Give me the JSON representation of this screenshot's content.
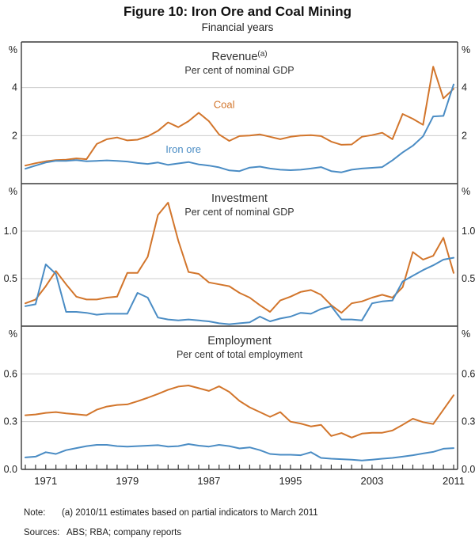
{
  "header": {
    "title": "Figure 10: Iron Ore and Coal Mining",
    "subtitle": "Financial years"
  },
  "footer": {
    "note_label": "Note:",
    "note_text": "(a) 2010/11 estimates based on partial indicators to March 2011",
    "sources_label": "Sources:",
    "sources_text": "ABS; RBA; company reports"
  },
  "colors": {
    "coal": "#D2752B",
    "iron_ore": "#4A8CC4",
    "frame": "#3a3a3a",
    "grid": "#cccccc",
    "text": "#1c1c1c",
    "panel_text": "#333333"
  },
  "x_axis": {
    "start_year": 1969,
    "end_year": 2011,
    "step": 1,
    "tick_labels": [
      "1971",
      "1979",
      "1987",
      "1995",
      "2003",
      "2011"
    ],
    "tick_label_years": [
      1971,
      1979,
      1987,
      1995,
      2003,
      2011
    ]
  },
  "chart_data": [
    {
      "type": "line",
      "title": "Revenue",
      "title_superscript": "(a)",
      "subtitle": "Per cent of nominal GDP",
      "unit": "%",
      "ylim": [
        0,
        5.9
      ],
      "yticks": [
        {
          "value": 2,
          "label": "2",
          "grid": true
        },
        {
          "value": 4,
          "label": "4",
          "grid": true
        }
      ],
      "annotations": [
        {
          "text": "Coal",
          "series": "coal",
          "x_year": 1988.5,
          "y_value": 3.15
        },
        {
          "text": "Iron ore",
          "series": "iron_ore",
          "x_year": 1984.5,
          "y_value": 1.28
        }
      ],
      "series": [
        {
          "name": "Coal",
          "color_key": "coal",
          "values": [
            0.75,
            0.85,
            0.93,
            0.98,
            1.0,
            1.05,
            1.02,
            1.65,
            1.85,
            1.92,
            1.8,
            1.83,
            1.97,
            2.2,
            2.55,
            2.35,
            2.6,
            2.95,
            2.6,
            2.05,
            1.78,
            1.98,
            2.0,
            2.05,
            1.95,
            1.85,
            1.95,
            2.0,
            2.02,
            1.98,
            1.75,
            1.62,
            1.63,
            1.95,
            2.02,
            2.12,
            1.85,
            2.9,
            2.7,
            2.45,
            4.87,
            3.55,
            3.95
          ]
        },
        {
          "name": "Iron ore",
          "color_key": "iron_ore",
          "values": [
            0.62,
            0.75,
            0.88,
            0.95,
            0.95,
            0.98,
            0.93,
            0.95,
            0.97,
            0.95,
            0.92,
            0.86,
            0.82,
            0.88,
            0.78,
            0.84,
            0.9,
            0.8,
            0.75,
            0.68,
            0.55,
            0.52,
            0.67,
            0.71,
            0.63,
            0.58,
            0.56,
            0.58,
            0.63,
            0.69,
            0.52,
            0.47,
            0.58,
            0.63,
            0.66,
            0.69,
            0.97,
            1.3,
            1.58,
            1.97,
            2.8,
            2.82,
            4.13
          ]
        }
      ]
    },
    {
      "type": "line",
      "title": "Investment",
      "title_superscript": "",
      "subtitle": "Per cent of nominal GDP",
      "unit": "%",
      "ylim": [
        0,
        1.5
      ],
      "yticks": [
        {
          "value": 0.5,
          "label": "0.5",
          "grid": true
        },
        {
          "value": 1.0,
          "label": "1.0",
          "grid": true
        }
      ],
      "annotations": [],
      "series": [
        {
          "name": "Coal",
          "color_key": "coal",
          "values": [
            0.24,
            0.28,
            0.42,
            0.58,
            0.44,
            0.31,
            0.28,
            0.28,
            0.3,
            0.31,
            0.56,
            0.56,
            0.73,
            1.17,
            1.3,
            0.9,
            0.57,
            0.55,
            0.46,
            0.44,
            0.42,
            0.35,
            0.3,
            0.22,
            0.15,
            0.27,
            0.31,
            0.36,
            0.38,
            0.33,
            0.22,
            0.14,
            0.24,
            0.26,
            0.3,
            0.33,
            0.3,
            0.41,
            0.78,
            0.7,
            0.74,
            0.93,
            0.56
          ]
        },
        {
          "name": "Iron ore",
          "color_key": "iron_ore",
          "values": [
            0.21,
            0.23,
            0.65,
            0.55,
            0.15,
            0.15,
            0.14,
            0.12,
            0.13,
            0.13,
            0.13,
            0.35,
            0.3,
            0.09,
            0.07,
            0.06,
            0.07,
            0.06,
            0.05,
            0.03,
            0.02,
            0.03,
            0.04,
            0.1,
            0.05,
            0.08,
            0.1,
            0.14,
            0.13,
            0.18,
            0.21,
            0.07,
            0.07,
            0.06,
            0.24,
            0.26,
            0.27,
            0.47,
            0.53,
            0.59,
            0.64,
            0.7,
            0.72
          ]
        }
      ]
    },
    {
      "type": "line",
      "title": "Employment",
      "title_superscript": "",
      "subtitle": "Per cent of total employment",
      "unit": "%",
      "ylim": [
        0,
        0.9
      ],
      "yticks": [
        {
          "value": 0,
          "label": "0.0",
          "grid": false
        },
        {
          "value": 0.3,
          "label": "0.3",
          "grid": true
        },
        {
          "value": 0.6,
          "label": "0.6",
          "grid": true
        }
      ],
      "annotations": [],
      "series": [
        {
          "name": "Coal",
          "color_key": "coal",
          "values": [
            0.34,
            0.345,
            0.355,
            0.36,
            0.352,
            0.346,
            0.34,
            0.375,
            0.395,
            0.405,
            0.408,
            0.428,
            0.45,
            0.474,
            0.5,
            0.52,
            0.527,
            0.51,
            0.493,
            0.522,
            0.487,
            0.43,
            0.39,
            0.36,
            0.33,
            0.36,
            0.3,
            0.288,
            0.27,
            0.28,
            0.21,
            0.228,
            0.2,
            0.225,
            0.23,
            0.23,
            0.244,
            0.28,
            0.318,
            0.297,
            0.285,
            0.375,
            0.466
          ]
        },
        {
          "name": "Iron ore",
          "color_key": "iron_ore",
          "values": [
            0.075,
            0.08,
            0.108,
            0.097,
            0.121,
            0.134,
            0.146,
            0.154,
            0.154,
            0.146,
            0.143,
            0.146,
            0.149,
            0.152,
            0.143,
            0.146,
            0.159,
            0.149,
            0.143,
            0.154,
            0.146,
            0.132,
            0.138,
            0.121,
            0.097,
            0.092,
            0.092,
            0.089,
            0.108,
            0.072,
            0.067,
            0.064,
            0.061,
            0.056,
            0.061,
            0.067,
            0.072,
            0.08,
            0.089,
            0.1,
            0.11,
            0.13,
            0.134
          ]
        }
      ]
    }
  ]
}
